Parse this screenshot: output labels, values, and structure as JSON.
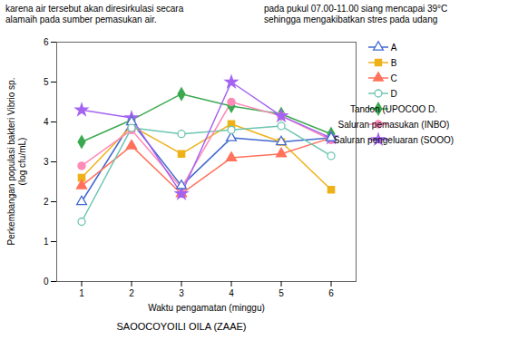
{
  "chart_data": {
    "type": "line",
    "x": [
      1,
      2,
      3,
      4,
      5,
      6
    ],
    "series": [
      {
        "name": "A",
        "marker": "triangle-open",
        "values": [
          2.0,
          4.0,
          2.4,
          3.6,
          3.5,
          3.6
        ]
      },
      {
        "name": "B",
        "marker": "square",
        "values": [
          2.6,
          3.9,
          3.2,
          3.95,
          3.5,
          2.3
        ]
      },
      {
        "name": "C",
        "marker": "triangle",
        "values": [
          2.4,
          3.4,
          2.2,
          3.1,
          3.2,
          3.6
        ]
      },
      {
        "name": "D",
        "marker": "circle-open",
        "values": [
          1.5,
          3.85,
          3.7,
          3.8,
          3.9,
          3.15
        ]
      },
      {
        "name": "Tandon (UPOCOO D.",
        "marker": "diamond",
        "values": [
          3.5,
          4.05,
          4.7,
          4.4,
          4.2,
          3.7
        ]
      },
      {
        "name": "Saluran pemasukan (INBO)",
        "marker": "circle",
        "values": [
          2.9,
          3.8,
          2.35,
          4.5,
          4.15,
          3.55
        ]
      },
      {
        "name": "Saluran pengeluaran (SOOO)",
        "marker": "star",
        "values": [
          4.3,
          4.1,
          2.2,
          5.0,
          4.15,
          3.6
        ]
      }
    ],
    "xlabel": "Waktu pengamatan (minggu)",
    "ylabel": "Perkembangan populasi bakteri Vibrio sp.\n(log cfu/mL)",
    "xlim": [
      0.5,
      6.5
    ],
    "ylim": [
      0,
      6
    ],
    "xticks": [
      1,
      2,
      3,
      4,
      5,
      6
    ],
    "yticks": [
      0,
      1,
      2,
      3,
      4,
      5,
      6
    ],
    "grid": false,
    "legend": "right",
    "annotations": [
      "karena air tersebut akan diresirkulasi secara\nalamaih pada sumber pemasukan air.",
      "pada pukul 07.00‑11.00 siang mencapai 39°C\nsehingga mengakibatkan stres pada udang"
    ],
    "caption": "SAOOCOYOILI OILA (ZAAE)"
  }
}
